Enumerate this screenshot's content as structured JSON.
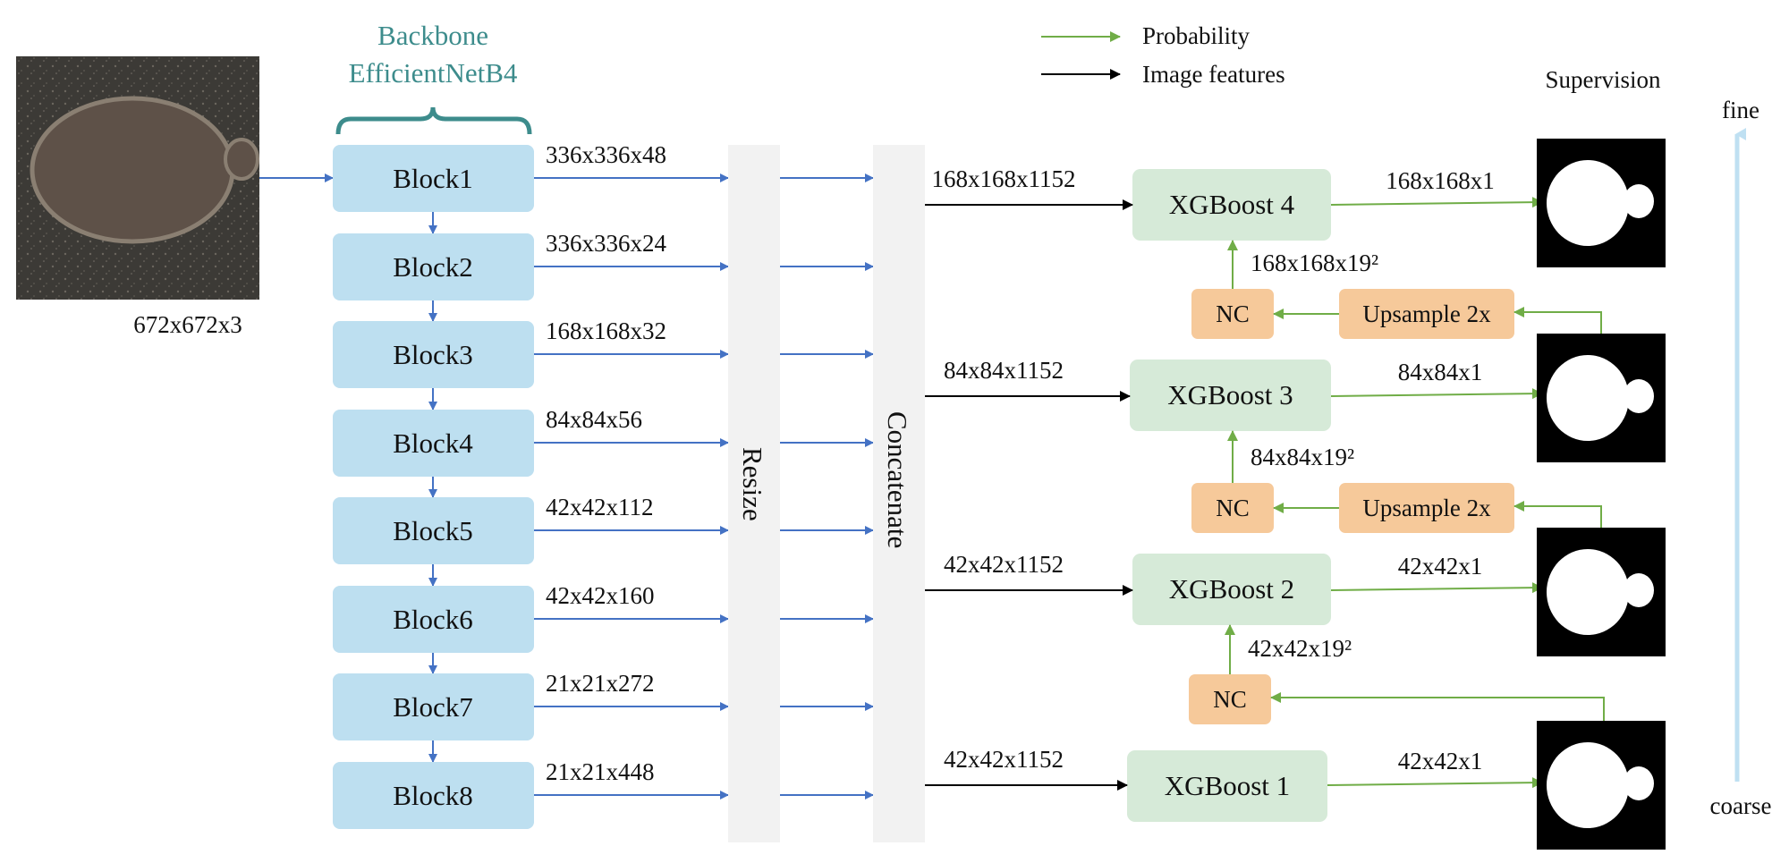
{
  "input_size": "672x672x3",
  "backbone": {
    "line1": "Backbone",
    "line2": "EfficientNetB4"
  },
  "legend": {
    "probability": "Probability",
    "image_features": "Image features"
  },
  "supervision": "Supervision",
  "scale_axis": {
    "top": "fine",
    "bottom": "coarse"
  },
  "blocks": [
    {
      "name": "Block1",
      "size": "336x336x48"
    },
    {
      "name": "Block2",
      "size": "336x336x24"
    },
    {
      "name": "Block3",
      "size": "168x168x32"
    },
    {
      "name": "Block4",
      "size": "84x84x56"
    },
    {
      "name": "Block5",
      "size": "42x42x112"
    },
    {
      "name": "Block6",
      "size": "42x42x160"
    },
    {
      "name": "Block7",
      "size": "21x21x272"
    },
    {
      "name": "Block8",
      "size": "21x21x448"
    }
  ],
  "resize": "Resize",
  "concatenate": "Concatenate",
  "xgb": [
    {
      "name": "XGBoost 4",
      "in": "168x168x1152",
      "out": "168x168x1",
      "nc": "168x168x19²"
    },
    {
      "name": "XGBoost 3",
      "in": "84x84x1152",
      "out": "84x84x1",
      "nc": "84x84x19²"
    },
    {
      "name": "XGBoost 2",
      "in": "42x42x1152",
      "out": "42x42x1",
      "nc": "42x42x19²"
    },
    {
      "name": "XGBoost 1",
      "in": "42x42x1152",
      "out": "42x42x1"
    }
  ],
  "nc_label": "NC",
  "upsample_label": "Upsample 2x",
  "colors": {
    "block": "#bddff0",
    "xgb": "#d6ead8",
    "nc": "#f6c99a",
    "bar": "#f2f2f2",
    "blue_arrow": "#4472c4",
    "green_arrow": "#70ad47",
    "teal": "#3d8c8c"
  }
}
